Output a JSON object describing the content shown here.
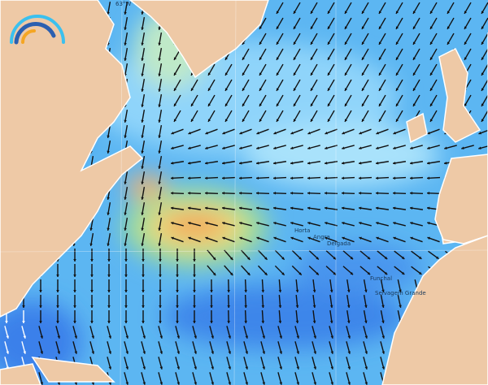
{
  "map": {
    "longitude_label": "63°W",
    "places": [
      "Horta",
      "Angra",
      "Delgada",
      "Funchal",
      "Selvagem Grande"
    ],
    "logo": "wave-logo",
    "colors": {
      "land": "#eec9a6",
      "ocean": "#5cb6f2",
      "calm": "#a9e2fb",
      "deep": "#2f74e6",
      "green": "#9fdc9a",
      "yellow": "#f2dc78",
      "orange": "#f0a05a"
    }
  }
}
